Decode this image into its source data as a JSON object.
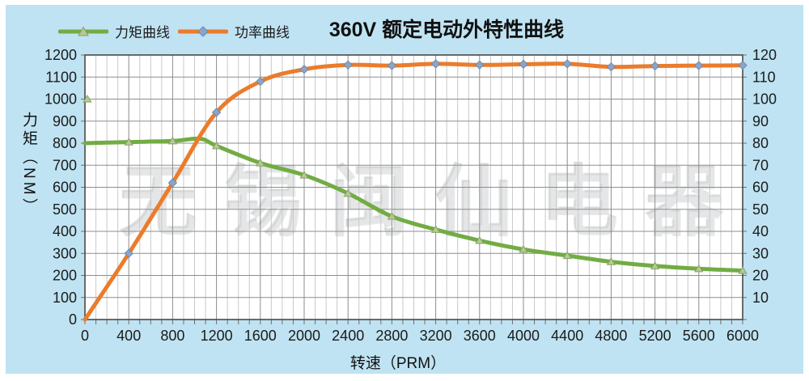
{
  "header": {
    "title": "360V 额定电动外特性曲线"
  },
  "legend": {
    "items": [
      {
        "label": "力矩曲线",
        "series": "torque",
        "marker": "triangle"
      },
      {
        "label": "功率曲线",
        "series": "power",
        "marker": "diamond"
      }
    ]
  },
  "watermark": "无锡闽仙电器",
  "colors": {
    "torque": "#72ac44",
    "power": "#ea7c2c",
    "triangle_fill": "#b7c79b",
    "triangle_stroke": "#86a35e",
    "diamond_fill": "#8ca4c6",
    "diamond_stroke": "#7189ab",
    "panel": "#bfe3f2",
    "grid_minor": "#c9c9c9",
    "grid_major": "#8d8d8d",
    "plot_border": "#4a4a4a"
  },
  "chart_data": {
    "type": "line",
    "title": "360V 额定电动外特性曲线",
    "xlabel": "转速（PRM）",
    "ylabel_left": "力矩（NM）",
    "ylabel_right": "",
    "xlim": [
      0,
      6000
    ],
    "ylim_left": [
      0,
      1200
    ],
    "ylim_right": [
      0,
      120
    ],
    "x_tick_step": 400,
    "x_minor_step": 100,
    "y_left_tick_step": 100,
    "y_right_tick_step": 10,
    "grid": "horizontal every 100 Nm; vertical minor every 100 RPM, major every 400 RPM",
    "legend_position": "top-left",
    "series": [
      {
        "name": "力矩曲线",
        "axis": "left",
        "marker": "triangle",
        "x": [
          0,
          400,
          800,
          1050,
          1200,
          1600,
          2000,
          2400,
          2800,
          3200,
          3600,
          4000,
          4400,
          4800,
          5200,
          5600,
          6000
        ],
        "values": [
          800,
          805,
          810,
          820,
          788,
          710,
          655,
          572,
          468,
          408,
          358,
          318,
          290,
          262,
          243,
          230,
          222
        ]
      },
      {
        "name": "功率曲线",
        "axis": "right",
        "marker": "diamond",
        "x": [
          0,
          400,
          800,
          1200,
          1600,
          2000,
          2400,
          2800,
          3200,
          3600,
          4000,
          4400,
          4800,
          5200,
          5600,
          6000
        ],
        "values": [
          0,
          30,
          62,
          94,
          108,
          113.5,
          115.5,
          115.2,
          116,
          115.5,
          115.8,
          116,
          114.6,
          115,
          115.2,
          115.3
        ]
      }
    ],
    "stray_point": {
      "series": "力矩曲线",
      "x": 0,
      "value": 1000,
      "marker": "triangle"
    }
  }
}
